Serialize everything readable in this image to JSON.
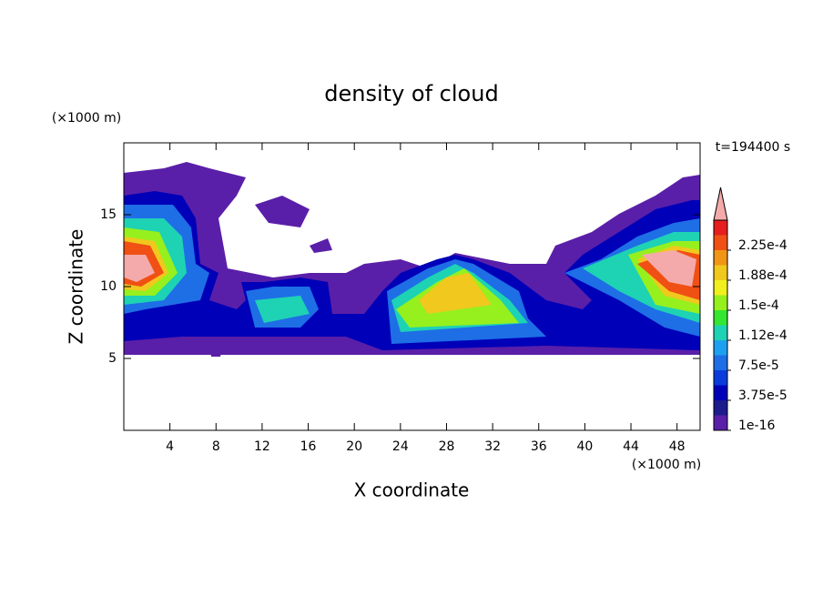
{
  "chart_data": {
    "type": "contour",
    "title": "density of cloud",
    "x_label": "X coordinate",
    "y_label": "Z coordinate",
    "x_unit": "(×1000 m)",
    "y_unit": "(×1000 m)",
    "annotation": "t=194400 s",
    "xlim": [
      0,
      50
    ],
    "xticks": [
      4,
      8,
      12,
      16,
      20,
      24,
      28,
      32,
      36,
      40,
      44,
      48
    ],
    "ylim": [
      0,
      20
    ],
    "yticks": [
      5,
      10,
      15
    ],
    "colorbar": {
      "clim": [
        1e-16,
        0.0002625
      ],
      "colors": [
        "#5a1fa8",
        "#1c1c8c",
        "#0000b8",
        "#0a3cdc",
        "#1e6ee6",
        "#1ea0f0",
        "#1ed2b4",
        "#32e632",
        "#96f01e",
        "#f0f01e",
        "#f0c81e",
        "#f09614",
        "#f05014",
        "#e61e1e"
      ],
      "extend_color": "#f4aaaa",
      "ticks": [
        {
          "value": 1e-16,
          "label": "1e-16"
        },
        {
          "value": 3.75e-05,
          "label": "3.75e-5"
        },
        {
          "value": 7.5e-05,
          "label": "7.5e-5"
        },
        {
          "value": 0.0001125,
          "label": "1.12e-4"
        },
        {
          "value": 0.00015,
          "label": "1.5e-4"
        },
        {
          "value": 0.0001875,
          "label": "1.88e-4"
        },
        {
          "value": 0.000225,
          "label": "2.25e-4"
        }
      ]
    }
  }
}
